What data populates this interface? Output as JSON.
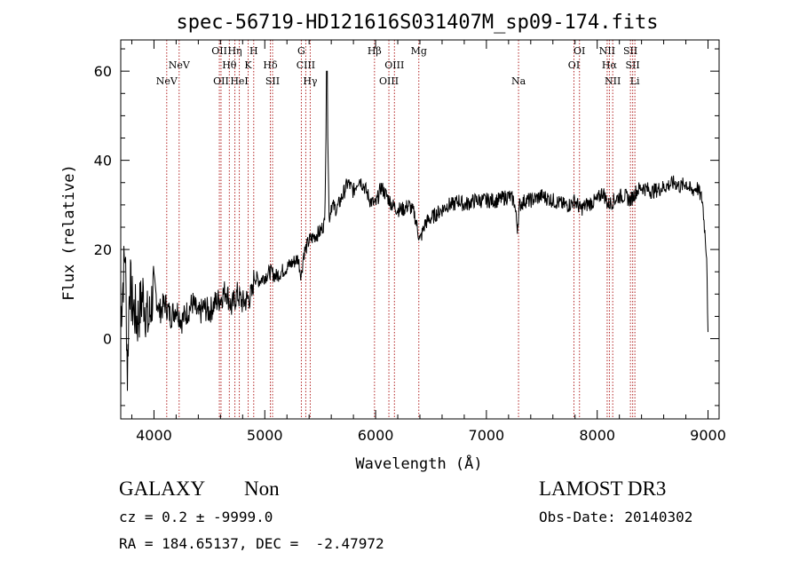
{
  "chart_data": {
    "type": "line",
    "title": "spec-56719-HD121616S031407M_sp09-174.fits",
    "xlabel": "Wavelength (Å)",
    "ylabel": "Flux (relative)",
    "xlim": [
      3700,
      9100
    ],
    "ylim": [
      -18,
      67
    ],
    "x_ticks": [
      4000,
      5000,
      6000,
      7000,
      8000,
      9000
    ],
    "x_tick_labels": [
      "4000",
      "5000",
      "6000",
      "7000",
      "8000",
      "9000"
    ],
    "y_ticks": [
      0,
      20,
      40,
      60
    ],
    "y_tick_labels": [
      "0",
      "20",
      "40",
      "60"
    ],
    "series": [
      {
        "name": "flux",
        "x": [
          3700,
          3740,
          3760,
          3780,
          3800,
          3850,
          3900,
          3950,
          4000,
          4050,
          4100,
          4150,
          4200,
          4250,
          4300,
          4350,
          4400,
          4450,
          4500,
          4550,
          4600,
          4650,
          4700,
          4750,
          4800,
          4850,
          4890,
          4900,
          4950,
          5000,
          5050,
          5100,
          5150,
          5200,
          5250,
          5300,
          5330,
          5350,
          5400,
          5450,
          5500,
          5540,
          5560,
          5580,
          5590,
          5600,
          5650,
          5700,
          5750,
          5800,
          5850,
          5900,
          5950,
          6000,
          6050,
          6100,
          6150,
          6200,
          6250,
          6300,
          6350,
          6400,
          6450,
          6500,
          6550,
          6600,
          6650,
          6700,
          6750,
          6800,
          6900,
          7000,
          7100,
          7200,
          7250,
          7280,
          7300,
          7350,
          7400,
          7500,
          7600,
          7700,
          7750,
          7800,
          7850,
          7900,
          8000,
          8050,
          8100,
          8150,
          8200,
          8250,
          8300,
          8350,
          8400,
          8500,
          8600,
          8700,
          8750,
          8800,
          8850,
          8900,
          8950,
          8990,
          9000
        ],
        "y": [
          5,
          20,
          -8,
          14,
          8,
          4,
          10,
          3,
          12,
          6,
          8,
          5,
          7,
          4,
          6,
          8,
          5,
          7,
          6,
          8,
          9,
          11,
          7,
          10,
          8,
          9,
          10,
          14,
          13,
          14,
          15,
          14,
          15,
          16,
          17,
          18,
          14,
          19,
          22,
          23,
          24,
          26,
          60,
          27,
          28,
          30,
          29,
          32,
          35,
          33,
          36,
          34,
          31,
          30,
          34,
          32,
          30,
          29,
          29,
          30,
          28,
          22,
          26,
          27,
          28,
          29,
          30,
          30,
          31,
          30,
          31,
          31,
          31,
          32,
          31,
          25,
          30,
          31,
          31,
          32,
          31,
          30,
          30,
          31,
          29,
          30,
          31,
          33,
          30,
          31,
          32,
          32,
          31,
          33,
          34,
          33,
          34,
          35,
          34,
          35,
          33,
          34,
          31,
          18,
          0
        ]
      }
    ],
    "lines": [
      {
        "wave": 4115,
        "label": "NeV",
        "row": 3
      },
      {
        "wave": 4227,
        "label": "NeV",
        "row": 2
      },
      {
        "wave": 4590,
        "label": "OII",
        "row": 1
      },
      {
        "wave": 4605,
        "label": "OII",
        "row": 3
      },
      {
        "wave": 4680,
        "label": "Hθ",
        "row": 2
      },
      {
        "wave": 4730,
        "label": "Hη",
        "row": 1
      },
      {
        "wave": 4770,
        "label": "HeI",
        "row": 3
      },
      {
        "wave": 4850,
        "label": "K",
        "row": 2
      },
      {
        "wave": 4900,
        "label": "H",
        "row": 1
      },
      {
        "wave": 5050,
        "label": "Hδ",
        "row": 2
      },
      {
        "wave": 5070,
        "label": "SII",
        "row": 3
      },
      {
        "wave": 5330,
        "label": "G",
        "row": 1
      },
      {
        "wave": 5370,
        "label": "CIII",
        "row": 2
      },
      {
        "wave": 5410,
        "label": "Hγ",
        "row": 3
      },
      {
        "wave": 5990,
        "label": "Hβ",
        "row": 1
      },
      {
        "wave": 6120,
        "label": "OIII",
        "row": 3
      },
      {
        "wave": 6170,
        "label": "OIII",
        "row": 2
      },
      {
        "wave": 6390,
        "label": "Mg",
        "row": 1
      },
      {
        "wave": 7290,
        "label": "Na",
        "row": 3
      },
      {
        "wave": 7790,
        "label": "OI",
        "row": 2
      },
      {
        "wave": 7840,
        "label": "OI",
        "row": 1
      },
      {
        "wave": 8090,
        "label": "NII",
        "row": 1
      },
      {
        "wave": 8110,
        "label": "Hα",
        "row": 2
      },
      {
        "wave": 8140,
        "label": "NII",
        "row": 3
      },
      {
        "wave": 8300,
        "label": "SII",
        "row": 1
      },
      {
        "wave": 8320,
        "label": "SII",
        "row": 2
      },
      {
        "wave": 8340,
        "label": "Li",
        "row": 3
      }
    ]
  },
  "info": {
    "class": "GALAXY",
    "subclass": "Non",
    "survey": "LAMOST DR3",
    "cz": "cz = 0.2 ± -9999.0",
    "obs_date": "Obs-Date: 20140302",
    "coords": "RA = 184.65137, DEC =  -2.47972"
  },
  "colors": {
    "spectrum": "#000000",
    "line_marker": "#b22222",
    "axis": "#000000"
  }
}
